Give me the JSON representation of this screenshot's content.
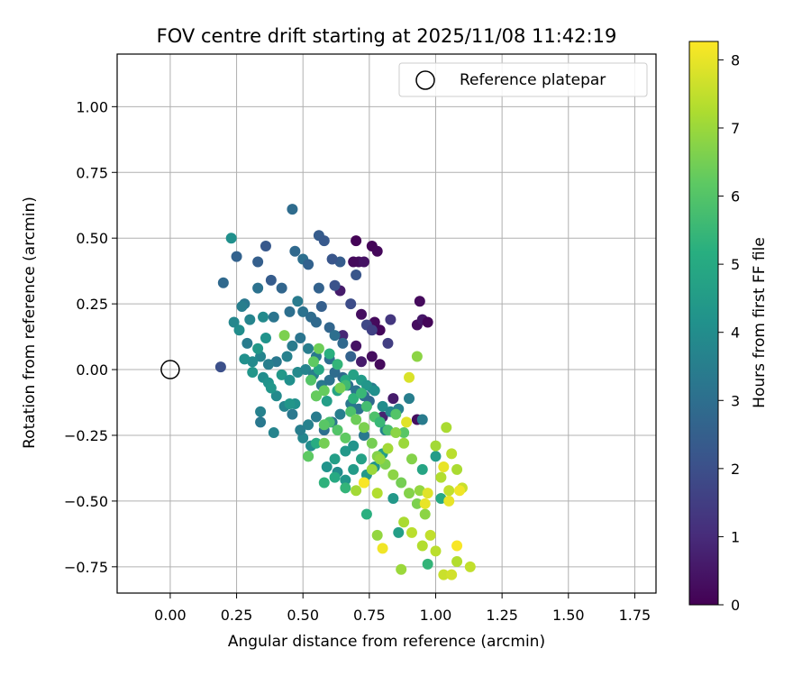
{
  "chart_data": {
    "type": "scatter",
    "title": "FOV centre drift starting at 2025/11/08 11:42:19",
    "xlabel": "Angular distance from reference (arcmin)",
    "ylabel": "Rotation from reference (arcmin)",
    "xlim": [
      -0.2,
      1.83
    ],
    "ylim": [
      -0.85,
      1.2
    ],
    "xticks": [
      0.0,
      0.25,
      0.5,
      0.75,
      1.0,
      1.25,
      1.5,
      1.75
    ],
    "xtick_labels": [
      "0.00",
      "0.25",
      "0.50",
      "0.75",
      "1.00",
      "1.25",
      "1.50",
      "1.75"
    ],
    "yticks": [
      -0.75,
      -0.5,
      -0.25,
      0.0,
      0.25,
      0.5,
      0.75,
      1.0
    ],
    "ytick_labels": [
      "−0.75",
      "−0.50",
      "−0.25",
      "0.00",
      "0.25",
      "0.50",
      "0.75",
      "1.00"
    ],
    "grid": true,
    "legend": {
      "placement": "top-right",
      "entries": [
        "Reference platepar"
      ]
    },
    "reference_point": {
      "x": 0.0,
      "y": 0.0,
      "name": "Reference platepar"
    },
    "colorbar": {
      "label": "Hours from first FF file",
      "min": 0,
      "max": 8.27,
      "ticks": [
        0,
        1,
        2,
        3,
        4,
        5,
        6,
        7,
        8
      ],
      "tick_labels": [
        "0",
        "1",
        "2",
        "3",
        "4",
        "5",
        "6",
        "7",
        "8"
      ],
      "colormap": "viridis"
    },
    "points": [
      [
        0.7,
        0.49,
        0.05
      ],
      [
        0.76,
        0.47,
        0.1
      ],
      [
        0.78,
        0.45,
        0.15
      ],
      [
        0.71,
        0.41,
        0.3
      ],
      [
        0.73,
        0.41,
        0.4
      ],
      [
        0.69,
        0.41,
        0.2
      ],
      [
        0.64,
        0.3,
        0.6
      ],
      [
        0.72,
        0.21,
        0.3
      ],
      [
        0.94,
        0.26,
        0.2
      ],
      [
        0.93,
        0.17,
        0.3
      ],
      [
        0.95,
        0.19,
        0.5
      ],
      [
        0.97,
        0.18,
        0.1
      ],
      [
        0.77,
        0.18,
        0.2
      ],
      [
        0.79,
        0.15,
        0.15
      ],
      [
        0.7,
        0.09,
        0.4
      ],
      [
        0.72,
        0.03,
        0.6
      ],
      [
        0.79,
        0.02,
        0.2
      ],
      [
        0.76,
        0.05,
        0.3
      ],
      [
        0.84,
        -0.11,
        0.6
      ],
      [
        0.93,
        -0.19,
        0.3
      ],
      [
        0.8,
        -0.18,
        0.8
      ],
      [
        0.65,
        0.13,
        0.9
      ],
      [
        0.83,
        0.19,
        1.3
      ],
      [
        0.82,
        0.1,
        1.5
      ],
      [
        0.74,
        0.17,
        1.8
      ],
      [
        0.19,
        0.01,
        2.0
      ],
      [
        0.76,
        0.15,
        1.6
      ],
      [
        0.68,
        0.25,
        1.9
      ],
      [
        0.62,
        0.32,
        2.1
      ],
      [
        0.7,
        0.36,
        2.2
      ],
      [
        0.64,
        0.41,
        2.4
      ],
      [
        0.36,
        0.47,
        2.3
      ],
      [
        0.33,
        0.41,
        2.5
      ],
      [
        0.25,
        0.43,
        2.6
      ],
      [
        0.2,
        0.33,
        2.8
      ],
      [
        0.56,
        0.51,
        2.4
      ],
      [
        0.58,
        0.49,
        2.3
      ],
      [
        0.47,
        0.45,
        2.8
      ],
      [
        0.5,
        0.42,
        3.0
      ],
      [
        0.52,
        0.4,
        2.6
      ],
      [
        0.46,
        0.61,
        2.9
      ],
      [
        0.56,
        0.31,
        2.6
      ],
      [
        0.61,
        0.42,
        2.2
      ],
      [
        0.38,
        0.34,
        2.4
      ],
      [
        0.42,
        0.31,
        2.7
      ],
      [
        0.33,
        0.31,
        3.1
      ],
      [
        0.28,
        0.25,
        3.3
      ],
      [
        0.27,
        0.24,
        3.5
      ],
      [
        0.39,
        0.2,
        3.2
      ],
      [
        0.45,
        0.22,
        3.0
      ],
      [
        0.48,
        0.26,
        3.4
      ],
      [
        0.5,
        0.22,
        3.1
      ],
      [
        0.53,
        0.2,
        2.9
      ],
      [
        0.55,
        0.18,
        2.8
      ],
      [
        0.57,
        0.24,
        2.5
      ],
      [
        0.6,
        0.16,
        2.7
      ],
      [
        0.62,
        0.13,
        3.0
      ],
      [
        0.65,
        0.1,
        2.8
      ],
      [
        0.68,
        0.05,
        2.6
      ],
      [
        0.6,
        0.04,
        3.0
      ],
      [
        0.55,
        0.05,
        3.3
      ],
      [
        0.52,
        0.08,
        3.5
      ],
      [
        0.49,
        0.12,
        3.2
      ],
      [
        0.46,
        0.09,
        3.4
      ],
      [
        0.44,
        0.05,
        3.6
      ],
      [
        0.4,
        0.03,
        3.3
      ],
      [
        0.37,
        0.02,
        3.5
      ],
      [
        0.34,
        0.05,
        3.7
      ],
      [
        0.31,
        0.03,
        3.9
      ],
      [
        0.29,
        0.1,
        3.4
      ],
      [
        0.24,
        0.18,
        3.8
      ],
      [
        0.26,
        0.15,
        4.0
      ],
      [
        0.23,
        0.5,
        4.1
      ],
      [
        0.3,
        0.19,
        3.7
      ],
      [
        0.35,
        0.2,
        3.9
      ],
      [
        0.36,
        0.12,
        4.2
      ],
      [
        0.33,
        0.08,
        4.4
      ],
      [
        0.28,
        0.04,
        4.1
      ],
      [
        0.31,
        -0.01,
        4.3
      ],
      [
        0.35,
        -0.03,
        4.0
      ],
      [
        0.37,
        -0.05,
        4.2
      ],
      [
        0.42,
        -0.02,
        4.4
      ],
      [
        0.45,
        -0.04,
        4.1
      ],
      [
        0.48,
        -0.01,
        3.9
      ],
      [
        0.51,
        0.0,
        3.7
      ],
      [
        0.54,
        -0.02,
        3.5
      ],
      [
        0.57,
        -0.06,
        3.3
      ],
      [
        0.6,
        -0.04,
        3.1
      ],
      [
        0.62,
        -0.01,
        2.9
      ],
      [
        0.65,
        -0.03,
        2.8
      ],
      [
        0.67,
        -0.06,
        3.0
      ],
      [
        0.7,
        -0.08,
        3.2
      ],
      [
        0.73,
        -0.1,
        3.0
      ],
      [
        0.75,
        -0.12,
        2.8
      ],
      [
        0.76,
        -0.07,
        3.4
      ],
      [
        0.71,
        -0.15,
        3.1
      ],
      [
        0.68,
        -0.13,
        3.3
      ],
      [
        0.64,
        -0.17,
        3.5
      ],
      [
        0.61,
        -0.2,
        3.2
      ],
      [
        0.58,
        -0.23,
        3.0
      ],
      [
        0.55,
        -0.18,
        3.4
      ],
      [
        0.52,
        -0.21,
        3.6
      ],
      [
        0.5,
        -0.26,
        3.8
      ],
      [
        0.53,
        -0.29,
        4.0
      ],
      [
        0.49,
        -0.23,
        3.5
      ],
      [
        0.46,
        -0.17,
        3.3
      ],
      [
        0.43,
        -0.14,
        3.7
      ],
      [
        0.4,
        -0.1,
        3.9
      ],
      [
        0.38,
        -0.07,
        4.3
      ],
      [
        0.34,
        -0.16,
        3.6
      ],
      [
        0.34,
        -0.2,
        3.3
      ],
      [
        0.39,
        -0.24,
        3.7
      ],
      [
        0.47,
        -0.13,
        4.1
      ],
      [
        0.55,
        -0.1,
        4.4
      ],
      [
        0.59,
        -0.12,
        4.6
      ],
      [
        0.63,
        -0.08,
        4.8
      ],
      [
        0.66,
        -0.04,
        5.0
      ],
      [
        0.69,
        -0.02,
        4.7
      ],
      [
        0.72,
        -0.04,
        4.5
      ],
      [
        0.74,
        -0.06,
        4.3
      ],
      [
        0.77,
        -0.08,
        4.1
      ],
      [
        0.8,
        -0.14,
        4.0
      ],
      [
        0.83,
        -0.16,
        3.8
      ],
      [
        0.86,
        -0.15,
        3.6
      ],
      [
        0.9,
        -0.11,
        3.5
      ],
      [
        0.95,
        -0.19,
        3.4
      ],
      [
        0.81,
        -0.23,
        3.7
      ],
      [
        0.73,
        -0.25,
        3.3
      ],
      [
        0.69,
        -0.29,
        4.2
      ],
      [
        0.66,
        -0.31,
        4.4
      ],
      [
        0.62,
        -0.34,
        4.6
      ],
      [
        0.59,
        -0.37,
        4.2
      ],
      [
        0.63,
        -0.39,
        4.0
      ],
      [
        0.66,
        -0.42,
        4.3
      ],
      [
        0.69,
        -0.38,
        4.5
      ],
      [
        0.72,
        -0.34,
        4.7
      ],
      [
        0.74,
        -0.4,
        4.4
      ],
      [
        0.77,
        -0.37,
        4.2
      ],
      [
        0.8,
        -0.32,
        4.6
      ],
      [
        0.84,
        -0.49,
        4.4
      ],
      [
        0.86,
        -0.62,
        4.6
      ],
      [
        0.95,
        -0.38,
        4.8
      ],
      [
        1.0,
        -0.33,
        4.5
      ],
      [
        1.02,
        -0.49,
        5.0
      ],
      [
        0.74,
        -0.55,
        5.2
      ],
      [
        0.66,
        -0.45,
        5.4
      ],
      [
        0.62,
        -0.41,
        5.0
      ],
      [
        0.58,
        -0.43,
        5.3
      ],
      [
        0.55,
        -0.28,
        5.1
      ],
      [
        0.52,
        -0.33,
        5.5
      ],
      [
        0.45,
        -0.13,
        4.3
      ],
      [
        0.56,
        0.0,
        4.9
      ],
      [
        0.6,
        0.06,
        5.2
      ],
      [
        0.63,
        0.02,
        5.4
      ],
      [
        0.66,
        -0.06,
        5.6
      ],
      [
        0.69,
        -0.11,
        5.3
      ],
      [
        0.72,
        -0.09,
        5.5
      ],
      [
        0.74,
        -0.14,
        5.7
      ],
      [
        0.77,
        -0.18,
        5.9
      ],
      [
        0.79,
        -0.2,
        5.5
      ],
      [
        0.82,
        -0.23,
        5.8
      ],
      [
        0.85,
        -0.17,
        6.0
      ],
      [
        0.88,
        -0.24,
        6.1
      ],
      [
        0.6,
        -0.2,
        5.8
      ],
      [
        0.63,
        -0.23,
        6.0
      ],
      [
        0.66,
        -0.26,
        6.2
      ],
      [
        0.68,
        -0.16,
        5.9
      ],
      [
        0.58,
        -0.21,
        6.1
      ],
      [
        0.55,
        -0.1,
        6.3
      ],
      [
        0.53,
        -0.04,
        6.0
      ],
      [
        0.54,
        0.03,
        6.2
      ],
      [
        0.56,
        0.08,
        6.4
      ],
      [
        0.58,
        -0.08,
        6.3
      ],
      [
        0.64,
        -0.07,
        6.5
      ],
      [
        0.7,
        -0.19,
        6.4
      ],
      [
        0.73,
        -0.22,
        6.6
      ],
      [
        0.76,
        -0.28,
        6.5
      ],
      [
        0.78,
        -0.33,
        6.7
      ],
      [
        0.81,
        -0.36,
        6.6
      ],
      [
        0.84,
        -0.4,
        6.8
      ],
      [
        0.87,
        -0.43,
        6.5
      ],
      [
        0.9,
        -0.47,
        6.7
      ],
      [
        0.93,
        -0.51,
        6.6
      ],
      [
        0.96,
        -0.55,
        6.8
      ],
      [
        0.94,
        -0.46,
        6.9
      ],
      [
        0.91,
        -0.34,
        6.7
      ],
      [
        0.88,
        -0.28,
        7.0
      ],
      [
        0.85,
        -0.24,
        6.8
      ],
      [
        0.82,
        -0.3,
        7.1
      ],
      [
        0.79,
        -0.34,
        6.9
      ],
      [
        0.76,
        -0.38,
        7.0
      ],
      [
        0.73,
        -0.43,
        7.2
      ],
      [
        0.7,
        -0.46,
        7.1
      ],
      [
        0.78,
        -0.47,
        7.3
      ],
      [
        0.88,
        -0.58,
        7.2
      ],
      [
        0.91,
        -0.62,
        7.4
      ],
      [
        0.95,
        -0.67,
        7.3
      ],
      [
        0.98,
        -0.63,
        7.5
      ],
      [
        1.0,
        -0.69,
        7.4
      ],
      [
        0.93,
        0.05,
        6.8
      ],
      [
        0.43,
        0.13,
        6.6
      ],
      [
        0.58,
        -0.28,
        6.5
      ],
      [
        0.52,
        -0.33,
        6.2
      ],
      [
        0.78,
        -0.63,
        6.9
      ],
      [
        0.87,
        -0.76,
        7.0
      ],
      [
        0.97,
        -0.74,
        5.4
      ],
      [
        1.04,
        -0.22,
        7.2
      ],
      [
        1.06,
        -0.32,
        7.4
      ],
      [
        1.0,
        -0.29,
        7.1
      ],
      [
        1.02,
        -0.41,
        7.3
      ],
      [
        1.05,
        -0.46,
        7.5
      ],
      [
        1.08,
        -0.38,
        7.2
      ],
      [
        1.1,
        -0.45,
        7.6
      ],
      [
        1.08,
        -0.73,
        7.3
      ],
      [
        1.13,
        -0.75,
        7.5
      ],
      [
        1.03,
        -0.78,
        7.6
      ],
      [
        1.06,
        -0.78,
        7.7
      ],
      [
        0.9,
        -0.03,
        7.8
      ],
      [
        0.89,
        -0.2,
        7.9
      ],
      [
        1.03,
        -0.37,
        8.0
      ],
      [
        1.09,
        -0.46,
        8.1
      ],
      [
        1.05,
        -0.5,
        8.0
      ],
      [
        0.73,
        -0.43,
        8.2
      ],
      [
        0.8,
        -0.68,
        8.1
      ],
      [
        1.08,
        -0.67,
        8.2
      ],
      [
        0.96,
        -0.51,
        8.0
      ],
      [
        0.97,
        -0.47,
        7.9
      ]
    ]
  }
}
